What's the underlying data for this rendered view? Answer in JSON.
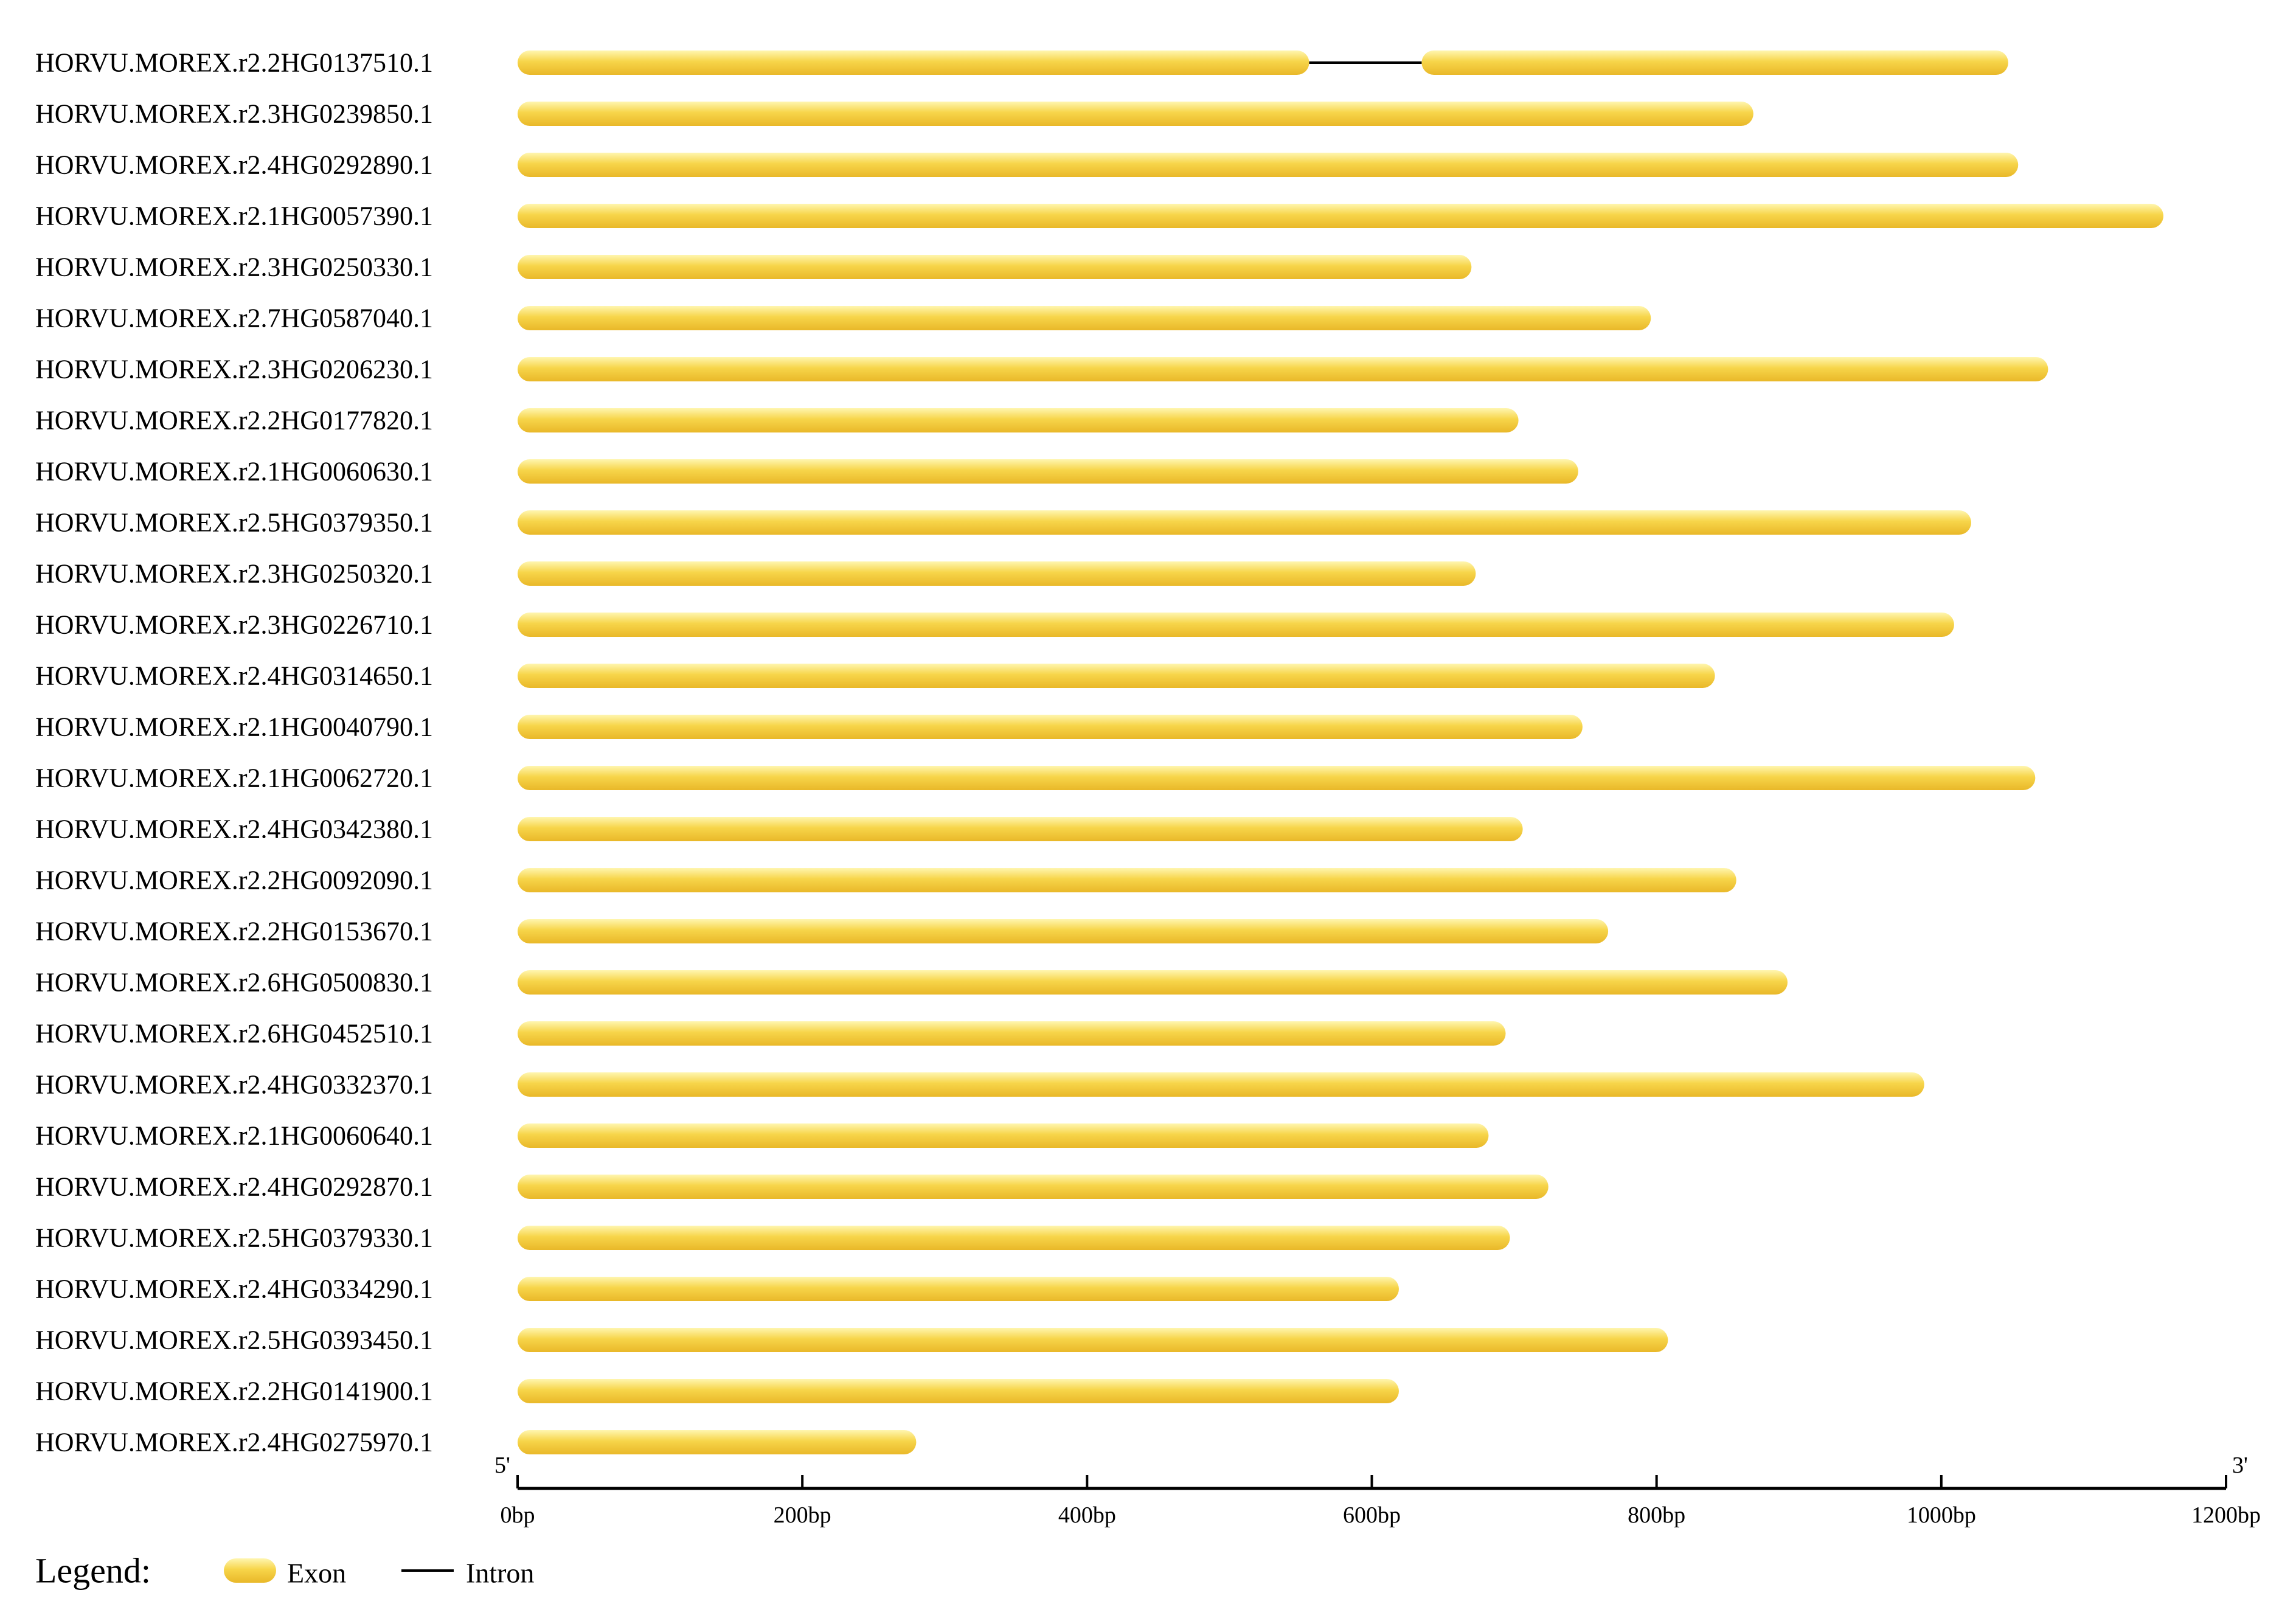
{
  "chart_data": {
    "type": "gene_structure",
    "genes": [
      {
        "name": "HORVU.MOREX.r2.2HG0137510.1",
        "exons": [
          [
            0,
            556
          ],
          [
            635,
            1047
          ]
        ],
        "introns": [
          [
            556,
            635
          ]
        ]
      },
      {
        "name": "HORVU.MOREX.r2.3HG0239850.1",
        "exons": [
          [
            0,
            868
          ]
        ],
        "introns": []
      },
      {
        "name": "HORVU.MOREX.r2.4HG0292890.1",
        "exons": [
          [
            0,
            1054
          ]
        ],
        "introns": []
      },
      {
        "name": "HORVU.MOREX.r2.1HG0057390.1",
        "exons": [
          [
            0,
            1156
          ]
        ],
        "introns": []
      },
      {
        "name": "HORVU.MOREX.r2.3HG0250330.1",
        "exons": [
          [
            0,
            670
          ]
        ],
        "introns": []
      },
      {
        "name": "HORVU.MOREX.r2.7HG0587040.1",
        "exons": [
          [
            0,
            796
          ]
        ],
        "introns": []
      },
      {
        "name": "HORVU.MOREX.r2.3HG0206230.1",
        "exons": [
          [
            0,
            1075
          ]
        ],
        "introns": []
      },
      {
        "name": "HORVU.MOREX.r2.2HG0177820.1",
        "exons": [
          [
            0,
            703
          ]
        ],
        "introns": []
      },
      {
        "name": "HORVU.MOREX.r2.1HG0060630.1",
        "exons": [
          [
            0,
            745
          ]
        ],
        "introns": []
      },
      {
        "name": "HORVU.MOREX.r2.5HG0379350.1",
        "exons": [
          [
            0,
            1021
          ]
        ],
        "introns": []
      },
      {
        "name": "HORVU.MOREX.r2.3HG0250320.1",
        "exons": [
          [
            0,
            673
          ]
        ],
        "introns": []
      },
      {
        "name": "HORVU.MOREX.r2.3HG0226710.1",
        "exons": [
          [
            0,
            1009
          ]
        ],
        "introns": []
      },
      {
        "name": "HORVU.MOREX.r2.4HG0314650.1",
        "exons": [
          [
            0,
            841
          ]
        ],
        "introns": []
      },
      {
        "name": "HORVU.MOREX.r2.1HG0040790.1",
        "exons": [
          [
            0,
            748
          ]
        ],
        "introns": []
      },
      {
        "name": "HORVU.MOREX.r2.1HG0062720.1",
        "exons": [
          [
            0,
            1066
          ]
        ],
        "introns": []
      },
      {
        "name": "HORVU.MOREX.r2.4HG0342380.1",
        "exons": [
          [
            0,
            706
          ]
        ],
        "introns": []
      },
      {
        "name": "HORVU.MOREX.r2.2HG0092090.1",
        "exons": [
          [
            0,
            856
          ]
        ],
        "introns": []
      },
      {
        "name": "HORVU.MOREX.r2.2HG0153670.1",
        "exons": [
          [
            0,
            766
          ]
        ],
        "introns": []
      },
      {
        "name": "HORVU.MOREX.r2.6HG0500830.1",
        "exons": [
          [
            0,
            892
          ]
        ],
        "introns": []
      },
      {
        "name": "HORVU.MOREX.r2.6HG0452510.1",
        "exons": [
          [
            0,
            694
          ]
        ],
        "introns": []
      },
      {
        "name": "HORVU.MOREX.r2.4HG0332370.1",
        "exons": [
          [
            0,
            988
          ]
        ],
        "introns": []
      },
      {
        "name": "HORVU.MOREX.r2.1HG0060640.1",
        "exons": [
          [
            0,
            682
          ]
        ],
        "introns": []
      },
      {
        "name": "HORVU.MOREX.r2.4HG0292870.1",
        "exons": [
          [
            0,
            724
          ]
        ],
        "introns": []
      },
      {
        "name": "HORVU.MOREX.r2.5HG0379330.1",
        "exons": [
          [
            0,
            697
          ]
        ],
        "introns": []
      },
      {
        "name": "HORVU.MOREX.r2.4HG0334290.1",
        "exons": [
          [
            0,
            619
          ]
        ],
        "introns": []
      },
      {
        "name": "HORVU.MOREX.r2.5HG0393450.1",
        "exons": [
          [
            0,
            808
          ]
        ],
        "introns": []
      },
      {
        "name": "HORVU.MOREX.r2.2HG0141900.1",
        "exons": [
          [
            0,
            619
          ]
        ],
        "introns": []
      },
      {
        "name": "HORVU.MOREX.r2.4HG0275970.1",
        "exons": [
          [
            0,
            280
          ]
        ],
        "introns": []
      }
    ],
    "x_axis": {
      "min": 0,
      "max": 1200,
      "ticks": [
        0,
        200,
        400,
        600,
        800,
        1000,
        1200
      ],
      "tick_labels": [
        "0bp",
        "200bp",
        "400bp",
        "600bp",
        "800bp",
        "1000bp",
        "1200bp"
      ],
      "start_label": "5'",
      "end_label": "3'"
    },
    "legend": {
      "title": "Legend:",
      "items": [
        {
          "label": "Exon",
          "kind": "exon"
        },
        {
          "label": "Intron",
          "kind": "intron"
        }
      ]
    },
    "colors": {
      "exon_light": "#fff6b0",
      "exon": "#f7d54a",
      "exon_dark": "#e9b829",
      "intron": "#000000",
      "axis": "#000000"
    }
  }
}
